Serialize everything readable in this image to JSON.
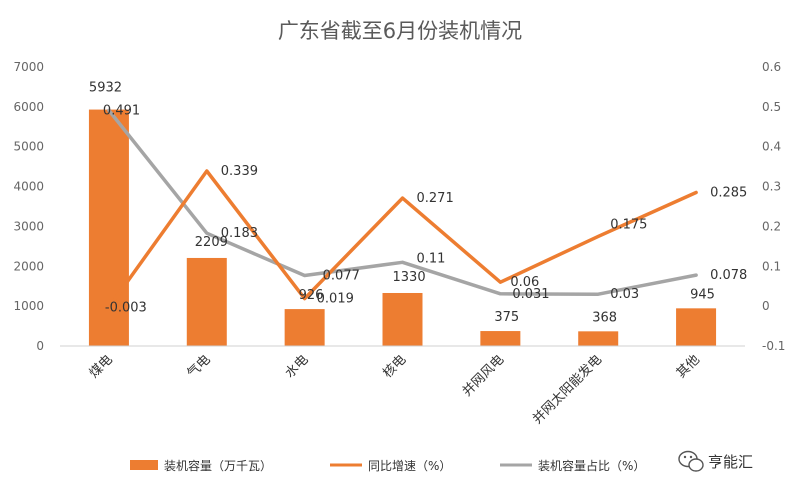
{
  "chart_data": {
    "type": "bar",
    "title": "广东省截至6月份装机情况",
    "categories": [
      "煤电",
      "气电",
      "水电",
      "核电",
      "并网风电",
      "并网太阳能发电",
      "其他"
    ],
    "series": [
      {
        "name": "装机容量（万千瓦）",
        "type": "bar",
        "axis": "left",
        "color": "#ED7D31",
        "values": [
          5932,
          2209,
          926,
          1330,
          375,
          368,
          945
        ],
        "labels": [
          "5932",
          "2209",
          "926",
          "1330",
          "375",
          "368",
          "945"
        ]
      },
      {
        "name": "同比增速（%）",
        "type": "line",
        "axis": "right",
        "color": "#ED7D31",
        "values": [
          -0.003,
          0.339,
          0.019,
          0.271,
          0.06,
          0.175,
          0.285
        ],
        "labels": [
          "-0.003",
          "0.339",
          "0.019",
          "0.271",
          "0.06",
          "0.175",
          "0.285"
        ]
      },
      {
        "name": "装机容量占比（%）",
        "type": "line",
        "axis": "right",
        "color": "#A5A5A5",
        "values": [
          0.491,
          0.183,
          0.077,
          0.11,
          0.031,
          0.03,
          0.078
        ],
        "labels": [
          "0.491",
          "0.183",
          "0.077",
          "0.11",
          "0.031",
          "0.03",
          "0.078"
        ]
      }
    ],
    "y_left": {
      "ylim": [
        0,
        7000
      ],
      "ticks": [
        "0",
        "1000",
        "2000",
        "3000",
        "4000",
        "5000",
        "6000",
        "7000"
      ]
    },
    "y_right": {
      "ylim": [
        -0.1,
        0.6
      ],
      "ticks": [
        "-0.1",
        "0",
        "0.1",
        "0.2",
        "0.3",
        "0.4",
        "0.5",
        "0.6"
      ]
    },
    "grid": false,
    "legend_position": "bottom"
  },
  "watermark": {
    "text": "亨能汇",
    "icon": "wechat-icon"
  }
}
